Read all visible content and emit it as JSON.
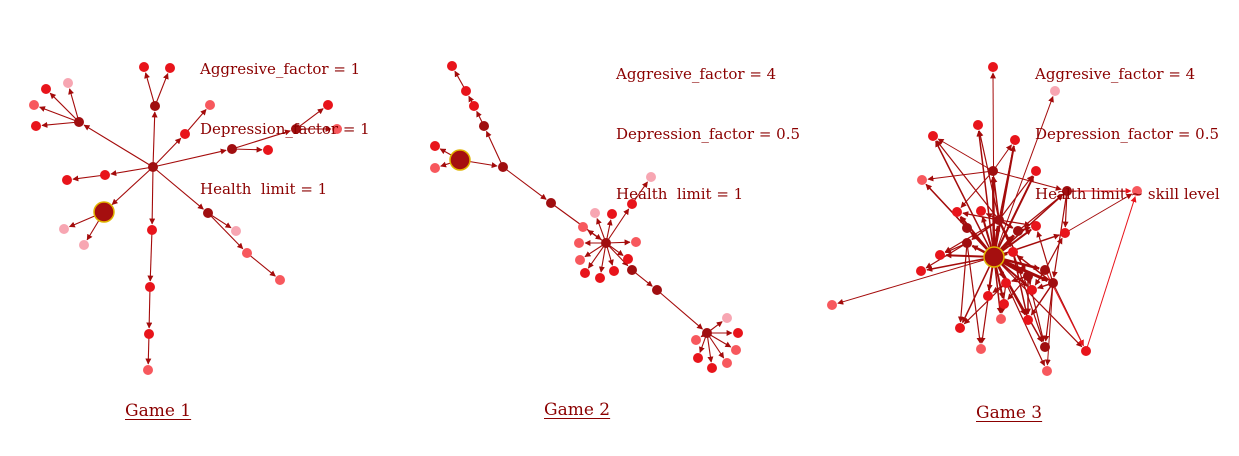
{
  "colors": {
    "dark": "#a00e10",
    "mid": "#e8141b",
    "light": "#f7585d",
    "pale": "#f7a6b2",
    "hub": "#a50f0f",
    "hub_ring": "#e0b400",
    "edge": "#a40b0b",
    "text": "#8b0000"
  },
  "games": [
    {
      "caption": "Game 1",
      "params": [
        "Aggresive_factor = 1",
        "Depression_factor = 1",
        "Health  limit = 1"
      ]
    },
    {
      "caption": "Game 2",
      "params": [
        "Aggresive_factor = 4",
        "Depression_factor = 0.5",
        "Health  limit = 1"
      ]
    },
    {
      "caption": "Game 3",
      "params": [
        "Aggresive_factor = 4",
        "Depression_factor = 0.5",
        "Health limit ~ skill level"
      ]
    }
  ]
}
